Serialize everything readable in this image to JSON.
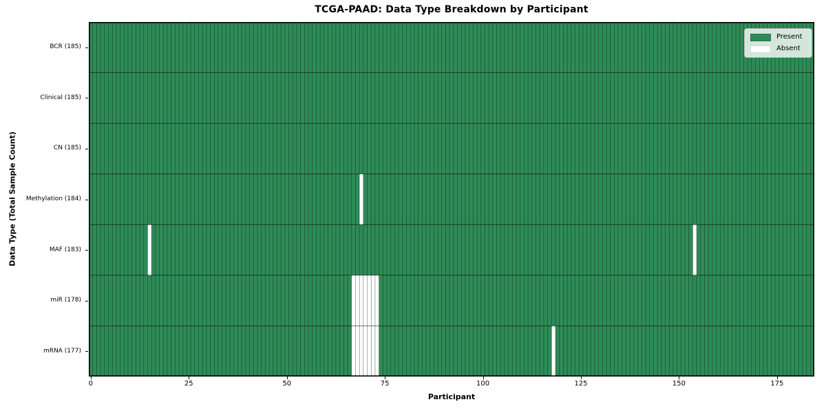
{
  "chart_data": {
    "type": "heatmap",
    "title": "TCGA-PAAD: Data Type Breakdown by Participant",
    "xlabel": "Participant",
    "ylabel": "Data Type (Total Sample Count)",
    "n_participants": 185,
    "xlim": [
      -0.5,
      184.5
    ],
    "x_ticks": [
      0,
      25,
      50,
      75,
      100,
      125,
      150,
      175
    ],
    "rows": [
      {
        "label": "BCR (185)",
        "data_type": "BCR",
        "present_count": 185,
        "absent_participants": []
      },
      {
        "label": "Clinical (185)",
        "data_type": "Clinical",
        "present_count": 185,
        "absent_participants": []
      },
      {
        "label": "CN (185)",
        "data_type": "CN",
        "present_count": 185,
        "absent_participants": []
      },
      {
        "label": "Methylation (184)",
        "data_type": "Methylation",
        "present_count": 184,
        "absent_participants": [
          69
        ]
      },
      {
        "label": "MAF (183)",
        "data_type": "MAF",
        "present_count": 183,
        "absent_participants": [
          15,
          154
        ]
      },
      {
        "label": "miR (178)",
        "data_type": "miR",
        "present_count": 178,
        "absent_participants": [
          67,
          68,
          69,
          70,
          71,
          72,
          73
        ]
      },
      {
        "label": "mRNA (177)",
        "data_type": "mRNA",
        "present_count": 177,
        "absent_participants": [
          67,
          68,
          69,
          70,
          71,
          72,
          73,
          118
        ]
      }
    ],
    "legend": {
      "position": "upper-right",
      "entries": [
        {
          "label": "Present",
          "color": "#2e8b57"
        },
        {
          "label": "Absent",
          "color": "#ffffff"
        }
      ]
    },
    "colors": {
      "present": "#2e8b57",
      "absent": "#ffffff",
      "cell_edge": "rgba(0,0,0,0.45)",
      "row_edge": "rgba(0,0,0,0.6)",
      "spine": "#000000"
    },
    "grid": false
  }
}
